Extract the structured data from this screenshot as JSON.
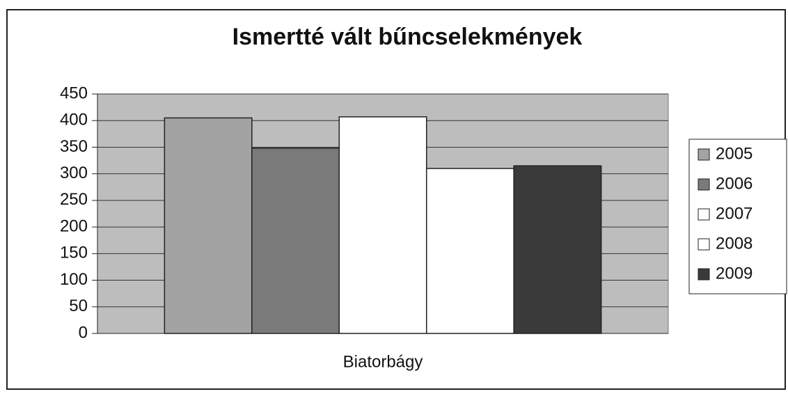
{
  "chart_data": {
    "type": "bar",
    "title": "Ismertté vált bűncselekmények",
    "categories": [
      "Biatorbágy"
    ],
    "series": [
      {
        "name": "2005",
        "color": "#a3a3a3",
        "values": [
          405
        ]
      },
      {
        "name": "2006",
        "color": "#7a7a7a",
        "values": [
          348
        ]
      },
      {
        "name": "2007",
        "color": "#ffffff",
        "values": [
          407
        ]
      },
      {
        "name": "2008",
        "color": "#ffffff",
        "values": [
          310
        ]
      },
      {
        "name": "2009",
        "color": "#3a3a3a",
        "values": [
          315
        ]
      }
    ],
    "ylim": [
      0,
      450
    ],
    "yticks": [
      0,
      50,
      100,
      150,
      200,
      250,
      300,
      350,
      400,
      450
    ],
    "grid": true,
    "legend": "right"
  }
}
